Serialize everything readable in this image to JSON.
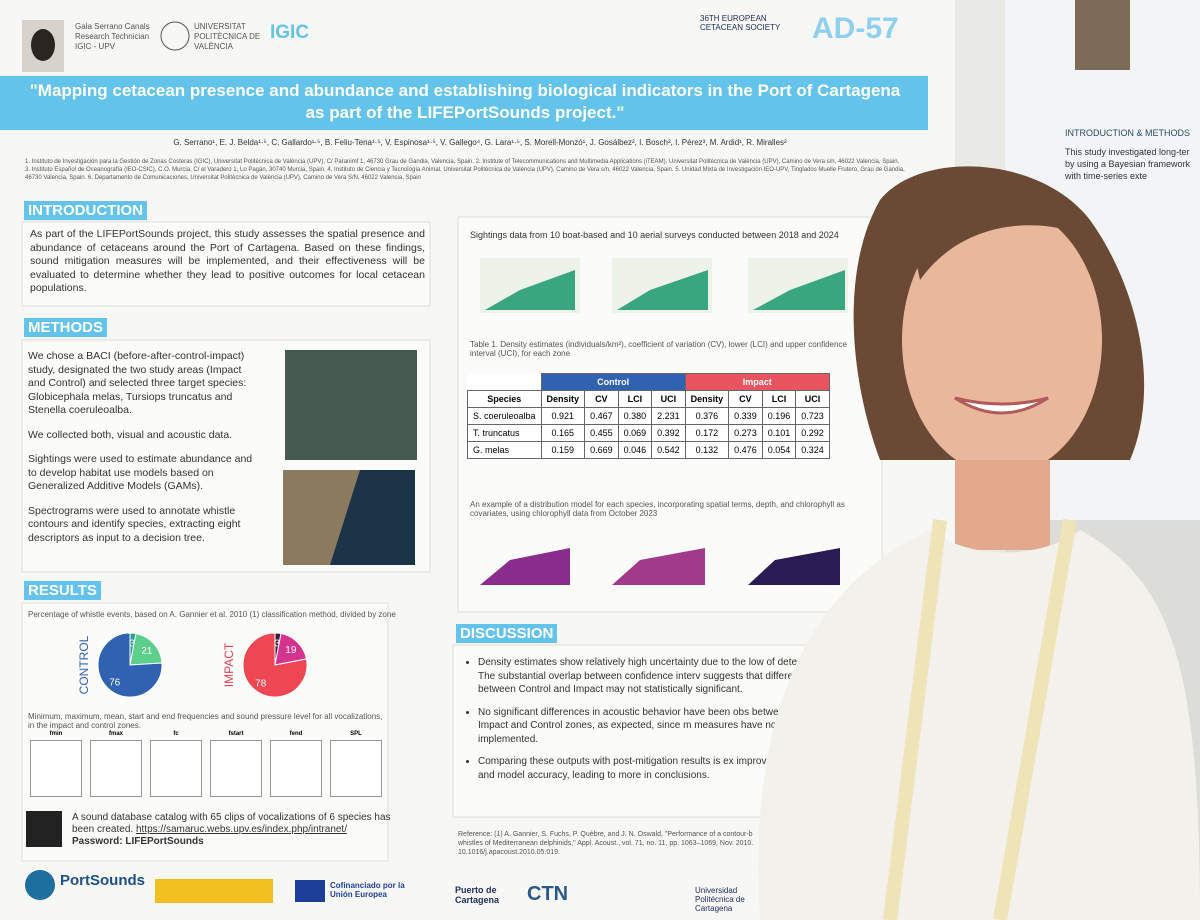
{
  "header": {
    "person": [
      "Gala Serrano Canals",
      "Research Technician",
      "IGIC - UPV"
    ],
    "university": "UNIVERSITAT POLITÈCNICA DE VALÈNCIA",
    "institute": "IGIC",
    "conference": "36TH EUROPEAN CETACEAN SOCIETY",
    "code": "AD-57"
  },
  "title": "\"Mapping cetacean presence and abundance and establishing biological indicators in the Port of Cartagena as part of the LIFEPortSounds project.\"",
  "authors": "G. Serrano¹, E. J. Belda¹·⁵, C. Gallardo¹·⁵, B. Feliu-Tena¹·⁵, V. Espinosa¹·⁵, V. Gallego⁴, G. Lara¹·⁵, S. Morell-Monzó¹, J. Gosálbez², I. Bosch², I. Pérez³, M. Ardid¹, R. Miralles²",
  "affiliations": "1. Instituto de Investigación para la Gestión de Zonas Costeras (IGIC), Universitat Politècnica de València (UPV), C/ Paranimf 1, 46730 Grau de Gandia, Valencia, Spain. 2. Institute of Telecommunications and Multimedia Applications (iTEAM), Universitat Politècnica de València (UPV), Camino de Vera s/n, 46022 Valencia, Spain. 3. Instituto Español de Oceanografía (IEO-CSIC), C.O. Murcia, C/ el Varadero 1, Lo Pagán, 30740 Murcia, Spain. 4. Instituto de Ciencia y Tecnología Animal, Universitat Politècnica de València (UPV), Camino de Vera s/n, 46022 Valencia, Spain. 5. Unidad Mixta de Investigación IEO-UPV, Tinglados Muelle Frutero, Grau de Gandia, 46730 Valencia, Spain. 6. Departamento de Comunicaciones, Universitat Politècnica de València (UPV), Camino de Vera S/N, 46022 Valencia, Spain",
  "introduction": {
    "heading": "INTRODUCTION",
    "text": "As part of the LIFEPortSounds project, this study assesses the spatial presence and abundance of cetaceans around the Port of Cartagena. Based on these findings, sound mitigation measures will be implemented, and their effectiveness will be evaluated to determine whether they lead to positive outcomes for local cetacean populations."
  },
  "methods": {
    "heading": "METHODS",
    "paragraphs": [
      "We chose a BACI (before-after-control-impact) study, designated the two study areas (Impact and Control) and selected three target species: Globicephala melas, Tursiops truncatus and Stenella coeruleoalba.",
      "We collected both, visual and acoustic data.",
      "Sightings were used to estimate abundance and to develop habitat use models based on Generalized Additive Models (GAMs).",
      "Spectrograms were used to annotate whistle contours and identify species, extracting eight descriptors as input to a decision tree."
    ]
  },
  "results": {
    "heading": "RESULTS",
    "caption": "Percentage of whistle events, based on A. Gannier et al. 2010 (1) classification method, divided by zone",
    "pies": [
      {
        "label": "CONTROL",
        "values": [
          3,
          21,
          76
        ],
        "colors": [
          "#2a9d8f",
          "#5ccf8b",
          "#2f62b0"
        ]
      },
      {
        "label": "IMPACT",
        "values": [
          3,
          19,
          78
        ],
        "colors": [
          "#3a2040",
          "#d6338f",
          "#ee4652"
        ]
      }
    ],
    "freq_caption": "Minimum, maximum, mean, start and end frequencies and sound pressure level for all vocalizations, in the impact and control zones.",
    "violins": [
      "fmin",
      "fmax",
      "fc",
      "fstart",
      "fend",
      "SPL"
    ],
    "database": "A sound database catalog with 65 clips of vocalizations of 6 species has been created.",
    "link": "https://samaruc.webs.upv.es/index.php/intranet/",
    "password": "Password: LIFEPortSounds"
  },
  "sightings": "Sightings data from 10 boat-based and 10 aerial surveys conducted between 2018 and 2024",
  "table": {
    "caption": "Table 1. Density estimates (individuals/km²), coefficient of variation (CV), lower (LCI) and upper confidence interval (UCI), for each zone",
    "groups": [
      "Control",
      "Impact"
    ],
    "columns": [
      "Species",
      "Density",
      "CV",
      "LCI",
      "UCI",
      "Density",
      "CV",
      "LCI",
      "UCI"
    ],
    "rows": [
      [
        "S. coeruleoalba",
        "0.921",
        "0.467",
        "0.380",
        "2.231",
        "0.376",
        "0.339",
        "0.196",
        "0.723"
      ],
      [
        "T. truncatus",
        "0.165",
        "0.455",
        "0.069",
        "0.392",
        "0.172",
        "0.273",
        "0.101",
        "0.292"
      ],
      [
        "G. melas",
        "0.159",
        "0.669",
        "0.046",
        "0.542",
        "0.132",
        "0.476",
        "0.054",
        "0.324"
      ]
    ]
  },
  "distribution": "An example of a distribution model for each species, incorporating spatial terms, depth, and chlorophyll as covariates, using chlorophyll data from October 2023",
  "discussion": {
    "heading": "DISCUSSION",
    "bullets": [
      "Density estimates show relatively high uncertainty due to the low of detections. The substantial overlap between confidence interv suggests that differences between Control and Impact may not statistically significant.",
      "No significant differences in acoustic behavior have been obs between the Impact and Control zones, as expected, since m measures have not yet been implemented.",
      "Comparing these outputs with post-mitigation results is ex improve estimate and model accuracy, leading to more in conclusions."
    ]
  },
  "reference": "Reference: (1) A. Gannier, S. Fuchs, P. Quèbre, and J. N. Oswald, \"Performance of a contour-b whistles of Mediterranean delphinids,\" Appl. Acoust., vol. 71, no. 11, pp. 1063–1069, Nov. 2010. 10.1016/j.apacoust.2010.05.019.",
  "footer": [
    "PortSounds",
    "Cofinanciado por la Unión Europea",
    "Puerto de Cartagena",
    "CTN",
    "Universidad Politécnica de Cartagena"
  ],
  "neighbor": {
    "heading": "INTRODUCTION & METHODS",
    "text": "This study investigated long-ter by using a Bayesian framework with time-series exte"
  }
}
